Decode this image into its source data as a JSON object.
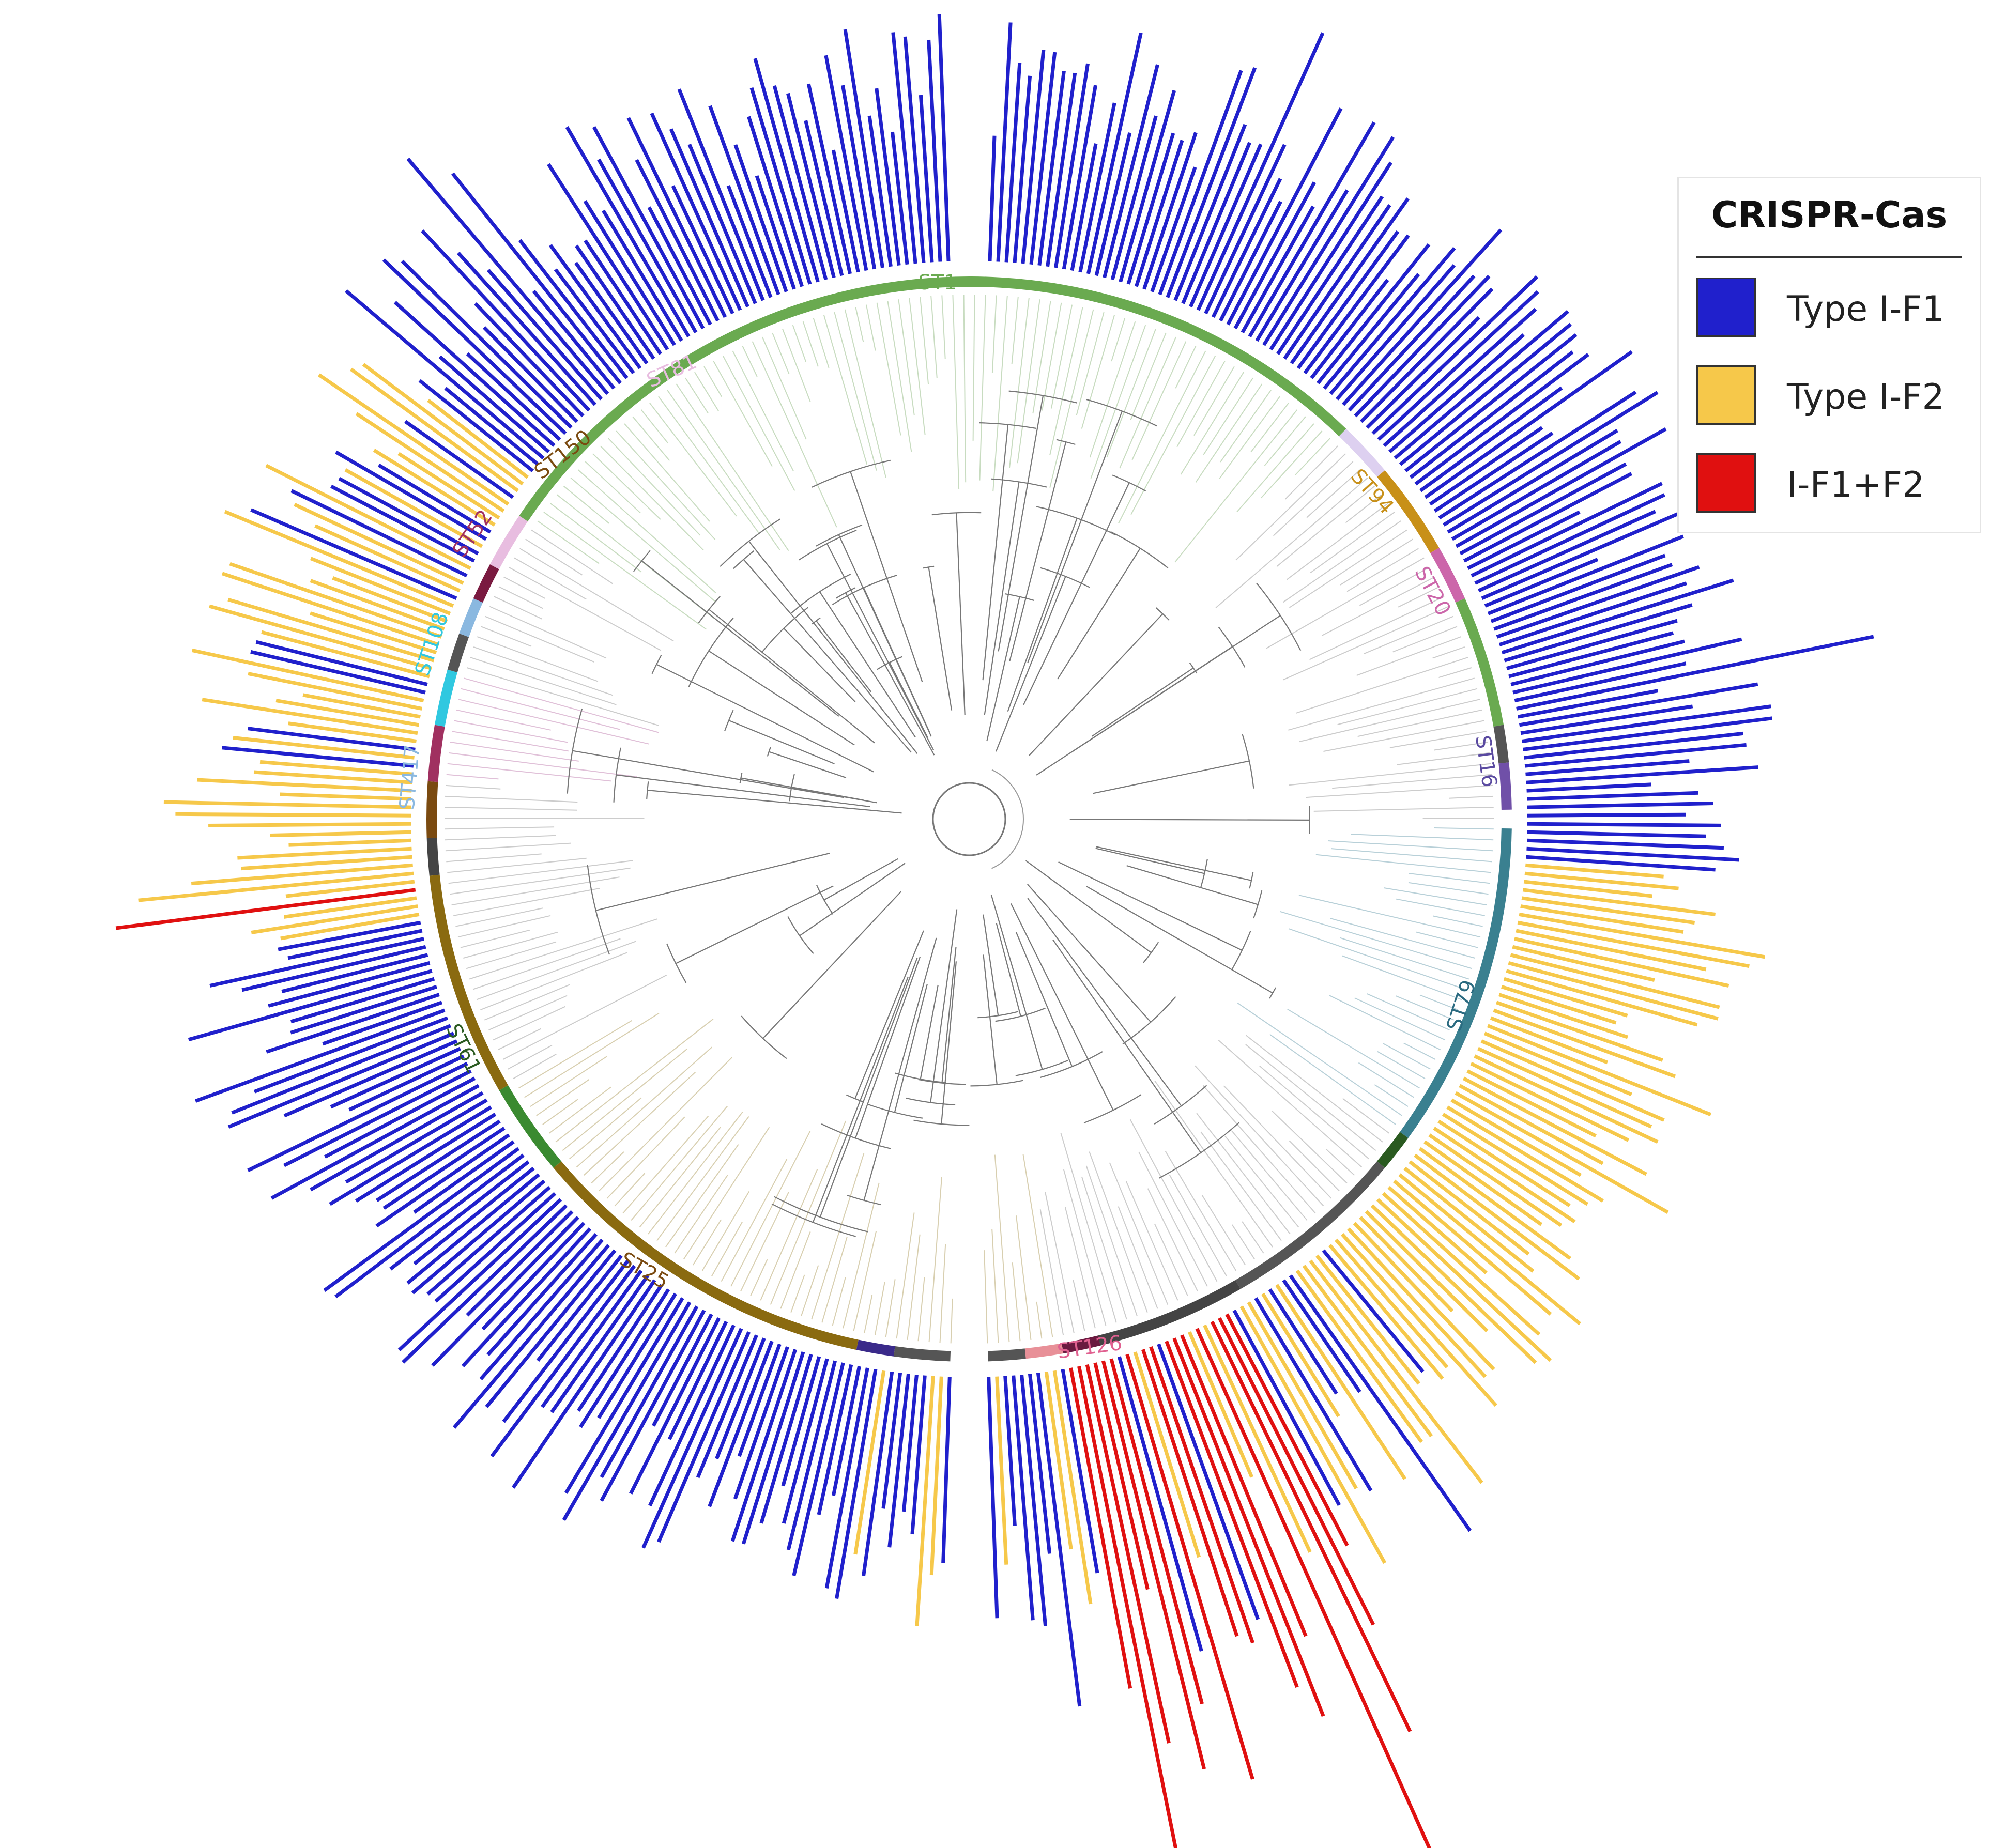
{
  "legend": {
    "title": "CRISPR-Cas",
    "items": [
      {
        "label": "Type I-F1",
        "color": "#2020cc"
      },
      {
        "label": "Type I-F2",
        "color": "#f6c84a"
      },
      {
        "label": "I-F1+F2",
        "color": "#e01010"
      }
    ]
  },
  "clades": [
    {
      "name": "ST1",
      "color": "#6aaa50"
    },
    {
      "name": "ST81",
      "color": "#e8bde0"
    },
    {
      "name": "ST150",
      "color": "#7a4a10"
    },
    {
      "name": "ST52",
      "color": "#a03060"
    },
    {
      "name": "ST108",
      "color": "#30c8e0"
    },
    {
      "name": "ST417",
      "color": "#8ab8e0"
    },
    {
      "name": "ST94",
      "color": "#c89018"
    },
    {
      "name": "ST20",
      "color": "#cc66aa"
    },
    {
      "name": "ST16",
      "color": "#7050a8"
    },
    {
      "name": "ST79",
      "color": "#3a8090"
    },
    {
      "name": "ST126",
      "color": "#e89098"
    },
    {
      "name": "ST25",
      "color": "#8a6a10"
    },
    {
      "name": "ST61",
      "color": "#3a8a30"
    }
  ]
}
